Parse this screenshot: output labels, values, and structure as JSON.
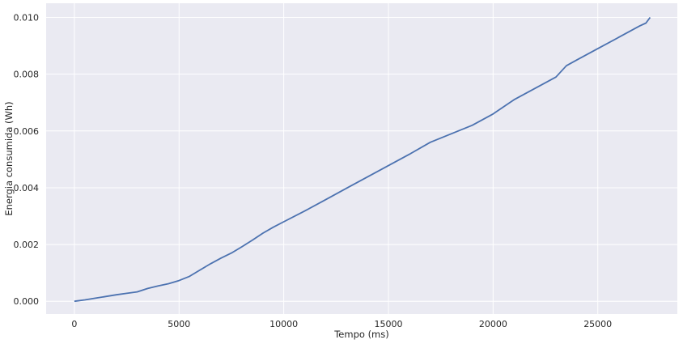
{
  "chart_data": {
    "type": "line",
    "title": "",
    "xlabel": "Tempo (ms)",
    "ylabel": "Energia consumida (Wh)",
    "xlim": [
      -1350,
      28800
    ],
    "ylim": [
      -0.00045,
      0.0105
    ],
    "grid": true,
    "colors": {
      "background": "#eaeaf2",
      "grid": "#ffffff",
      "line": "#4c72b0"
    },
    "xticks": [
      0,
      5000,
      10000,
      15000,
      20000,
      25000
    ],
    "xtick_labels": [
      "0",
      "5000",
      "10000",
      "15000",
      "20000",
      "25000"
    ],
    "yticks": [
      0,
      0.002,
      0.004,
      0.006,
      0.008,
      0.01
    ],
    "ytick_labels": [
      "0.000",
      "0.002",
      "0.004",
      "0.006",
      "0.008",
      "0.010"
    ],
    "series": [
      {
        "x": [
          0,
          500,
          1000,
          1500,
          2000,
          2500,
          3000,
          3500,
          4000,
          4500,
          5000,
          5500,
          6000,
          6500,
          7000,
          7500,
          8000,
          8500,
          9000,
          9500,
          10000,
          11000,
          12000,
          13000,
          14000,
          15000,
          16000,
          17000,
          18000,
          19000,
          20000,
          21000,
          22000,
          23000,
          23500,
          24000,
          25000,
          26000,
          27000,
          27300,
          27500
        ],
        "y": [
          0,
          5e-05,
          0.00011,
          0.00017,
          0.00023,
          0.00028,
          0.00033,
          0.00045,
          0.00054,
          0.00062,
          0.00073,
          0.00088,
          0.0011,
          0.00132,
          0.00152,
          0.0017,
          0.00192,
          0.00215,
          0.0024,
          0.00261,
          0.0028,
          0.00318,
          0.00358,
          0.00398,
          0.00438,
          0.00478,
          0.00518,
          0.0056,
          0.0059,
          0.0062,
          0.0066,
          0.0071,
          0.0075,
          0.0079,
          0.0083,
          0.0085,
          0.0089,
          0.0093,
          0.0097,
          0.0098,
          0.01
        ]
      }
    ]
  }
}
